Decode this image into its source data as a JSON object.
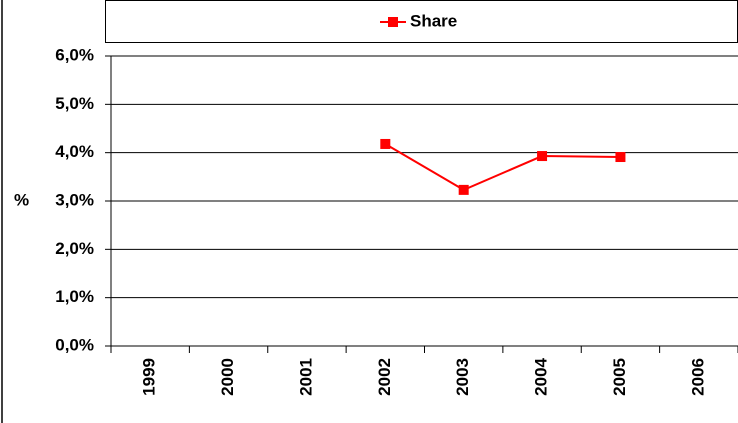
{
  "chart_data": {
    "type": "line",
    "categories": [
      "1999",
      "2000",
      "2001",
      "2002",
      "2003",
      "2004",
      "2005",
      "2006"
    ],
    "series": [
      {
        "name": "Share",
        "color": "#ff0000",
        "values": [
          null,
          null,
          null,
          4.18,
          3.23,
          3.93,
          3.91,
          null
        ]
      }
    ],
    "y_label": "%",
    "ylim": [
      0,
      6
    ],
    "yticks": [
      {
        "value": 0,
        "label": "0,0%"
      },
      {
        "value": 1,
        "label": "1,0%"
      },
      {
        "value": 2,
        "label": "2,0%"
      },
      {
        "value": 3,
        "label": "3,0%"
      },
      {
        "value": 4,
        "label": "4,0%"
      },
      {
        "value": 5,
        "label": "5,0%"
      },
      {
        "value": 6,
        "label": "6,0%"
      }
    ],
    "grid": true,
    "legend": "top"
  }
}
